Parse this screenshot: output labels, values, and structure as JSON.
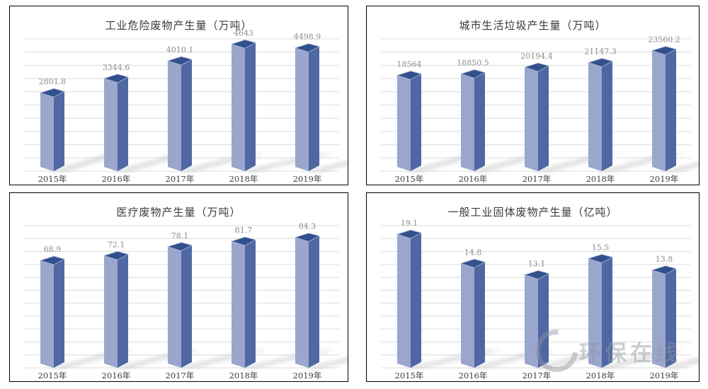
{
  "page": {
    "background": "#ffffff"
  },
  "watermark": {
    "text": "环保在线",
    "color": "#8f959e"
  },
  "style": {
    "bar_left_face": "#9AA6CE",
    "bar_right_face": "#4F67A2",
    "bar_top_face": "#32508C",
    "bar_top_edge": "#AEB9DA",
    "gridline": "#DCDCDC",
    "shadow": "#ADADAD",
    "title_color": "#3A3A3A",
    "value_label_color": "#8C8C8C",
    "category_label_color": "#3C3C3C",
    "panel_border": "#000000"
  },
  "chart_data": [
    {
      "type": "bar",
      "title": "工业危险废物产生量（万吨）",
      "categories": [
        "2015年",
        "2016年",
        "2017年",
        "2018年",
        "2019年"
      ],
      "values": [
        2801.8,
        3344.6,
        4010.1,
        4643,
        4498.9
      ],
      "value_labels": [
        "2801.8",
        "3344.6",
        "4010.1",
        "4643",
        "4498.9"
      ],
      "xlabel": "",
      "ylabel": "",
      "ylim": [
        0,
        5000
      ],
      "grid": true,
      "legend": false
    },
    {
      "type": "bar",
      "title": "城市生活垃圾产生量（万吨）",
      "categories": [
        "2015年",
        "2016年",
        "2017年",
        "2018年",
        "2019年"
      ],
      "values": [
        18564,
        18850.5,
        20194.4,
        21147.3,
        23560.2
      ],
      "value_labels": [
        "18564",
        "18850.5",
        "20194.4",
        "21147.3",
        "23560.2"
      ],
      "xlabel": "",
      "ylabel": "",
      "ylim": [
        0,
        26800
      ],
      "grid": true,
      "legend": false
    },
    {
      "type": "bar",
      "title": "医疗废物产生量（万吨）",
      "categories": [
        "2015年",
        "2016年",
        "2017年",
        "2018年",
        "2019年"
      ],
      "values": [
        68.9,
        72.1,
        78.1,
        81.7,
        84.3
      ],
      "value_labels": [
        "68.9",
        "72.1",
        "78.1",
        "81.7",
        "84.3"
      ],
      "xlabel": "",
      "ylabel": "",
      "ylim": [
        0,
        95
      ],
      "grid": true,
      "legend": false
    },
    {
      "type": "bar",
      "title": "一般工业固体废物产生量（亿吨）",
      "categories": [
        "2015年",
        "2016年",
        "2017年",
        "2018年",
        "2019年"
      ],
      "values": [
        19.1,
        14.8,
        13.1,
        15.5,
        13.8
      ],
      "value_labels": [
        "19.1",
        "14.8",
        "13.1",
        "15.5",
        "13.8"
      ],
      "xlabel": "",
      "ylabel": "",
      "ylim": [
        0,
        21
      ],
      "grid": true,
      "legend": false
    }
  ]
}
